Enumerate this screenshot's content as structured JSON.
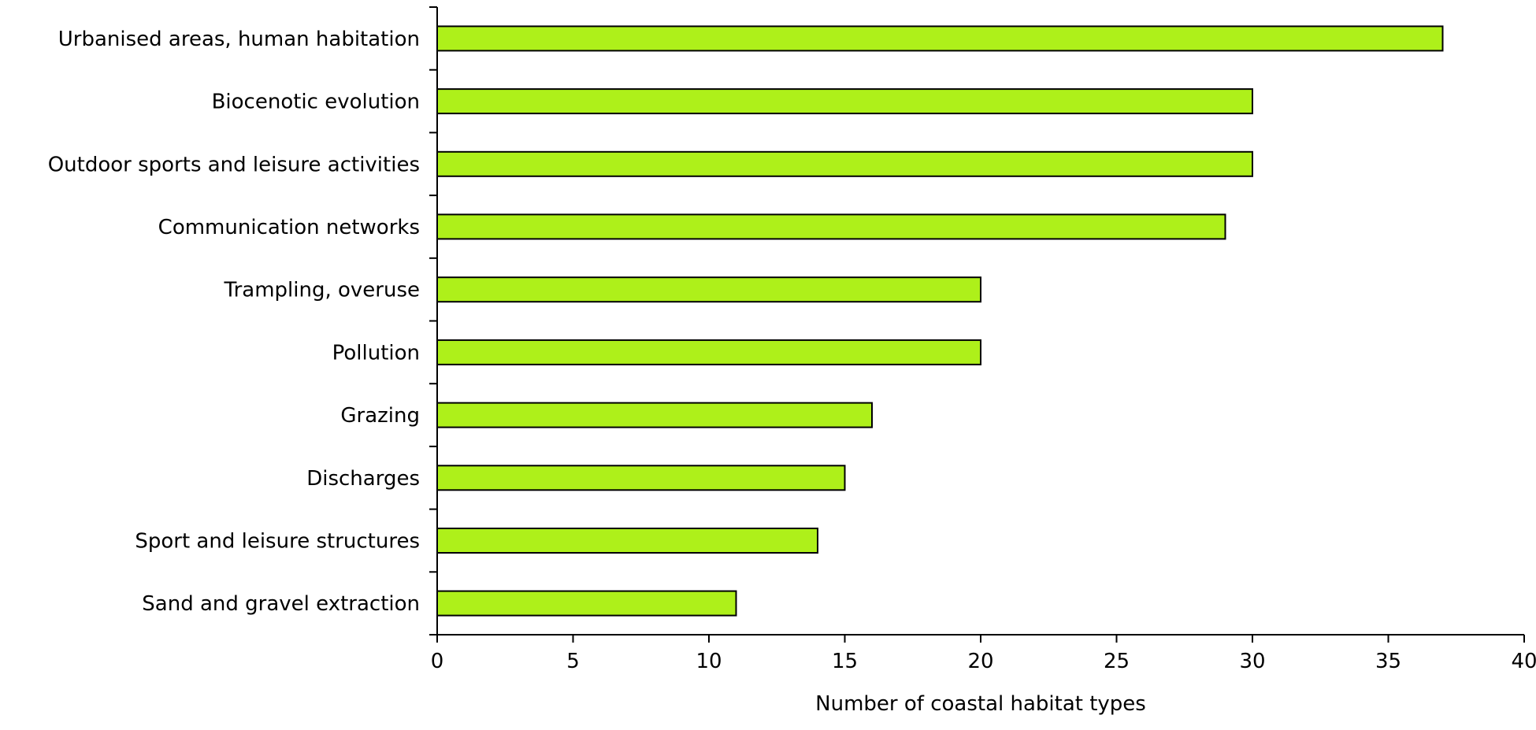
{
  "chart_data": {
    "type": "bar",
    "orientation": "horizontal",
    "categories": [
      "Urbanised areas, human habitation",
      "Biocenotic evolution",
      "Outdoor sports and leisure activities",
      "Communication networks",
      "Trampling, overuse",
      "Pollution",
      "Grazing",
      "Discharges",
      "Sport and leisure structures",
      "Sand and gravel extraction"
    ],
    "values": [
      37,
      30,
      30,
      29,
      20,
      20,
      16,
      15,
      14,
      11
    ],
    "xlabel": "Number of coastal habitat types",
    "ylabel": "",
    "xlim": [
      0,
      40
    ],
    "xticks": [
      0,
      5,
      10,
      15,
      20,
      25,
      30,
      35,
      40
    ],
    "grid": false,
    "legend": "none",
    "colors": {
      "bar_fill": "#AEF01A",
      "bar_stroke": "#000000",
      "axis": "#000000"
    }
  }
}
